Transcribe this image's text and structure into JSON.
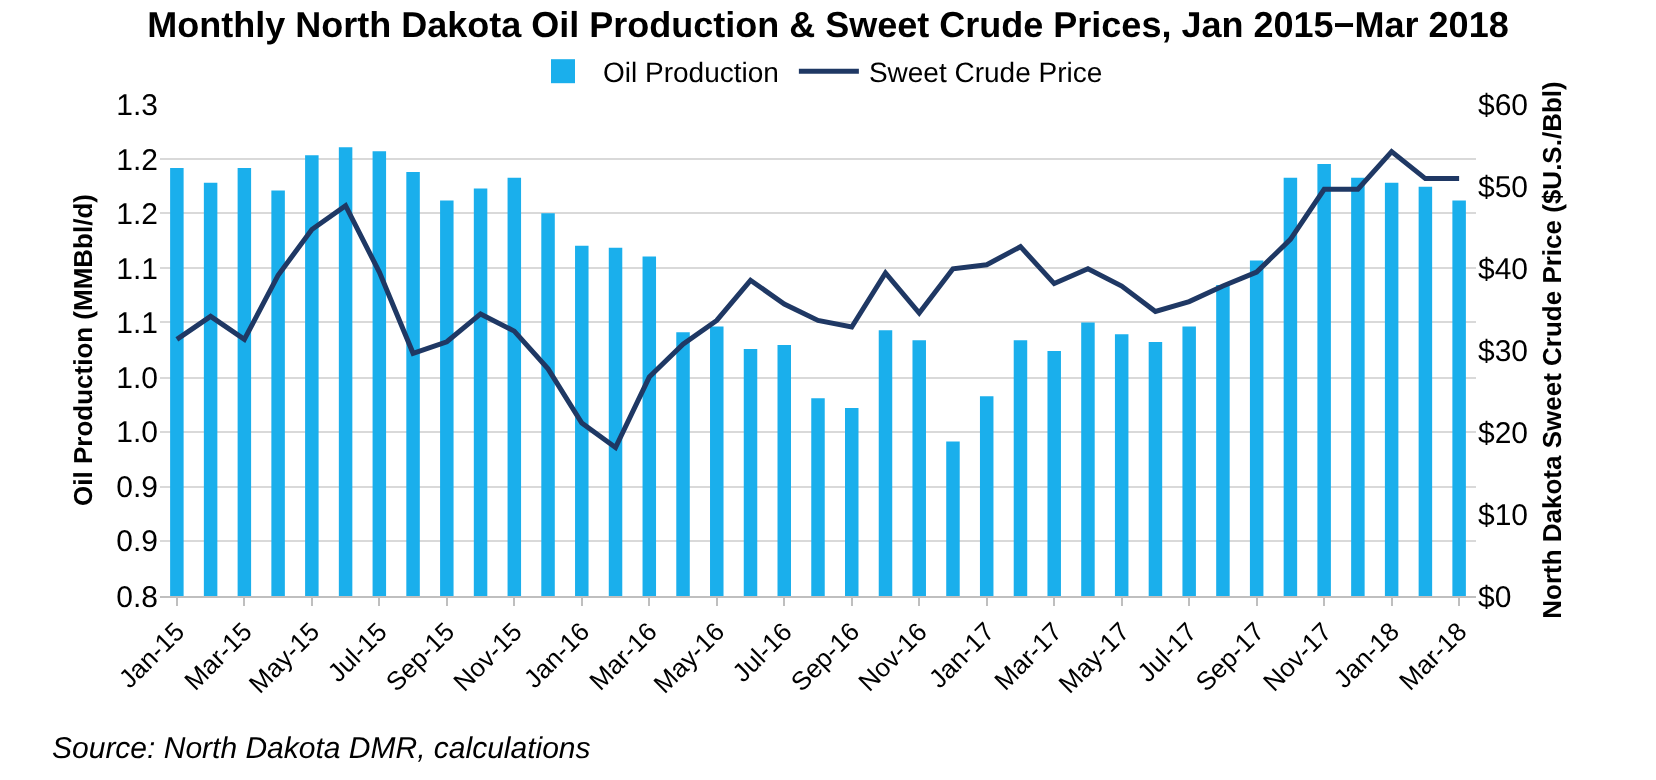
{
  "chart_data": {
    "type": "bar",
    "title": "Monthly North Dakota Oil Production & Sweet Crude Prices, Jan 2015−Mar 2018",
    "ylabel": "Oil Production (MMBbl/d)",
    "y2label": "North Dakota Sweet Crude Price ($U.S./Bbl)",
    "annotations": [
      "Source: North Dakota DMR, calculations"
    ],
    "categories": [
      "Jan-15",
      null,
      "Mar-15",
      null,
      "May-15",
      null,
      "Jul-15",
      null,
      "Sep-15",
      null,
      "Nov-15",
      null,
      "Jan-16",
      null,
      "Mar-16",
      null,
      "May-16",
      null,
      "Jul-16",
      null,
      "Sep-16",
      null,
      "Nov-16",
      null,
      "Jan-17",
      null,
      "Mar-17",
      null,
      "May-17",
      null,
      "Jul-17",
      null,
      "Sep-17",
      null,
      "Nov-17",
      null,
      "Jan-18",
      null,
      "Mar-18"
    ],
    "series": [
      {
        "name": "Oil Production",
        "color": "#1aafec",
        "values": [
          1.235,
          1.22,
          1.235,
          1.212,
          1.248,
          1.256,
          1.252,
          1.231,
          1.202,
          1.214,
          1.225,
          1.189,
          1.156,
          1.154,
          1.145,
          1.068,
          1.074,
          1.051,
          1.055,
          1.001,
          0.991,
          1.07,
          1.06,
          0.957,
          1.003,
          1.06,
          1.049,
          1.078,
          1.066,
          1.058,
          1.074,
          1.116,
          1.141,
          1.225,
          1.239,
          1.225,
          1.22,
          1.216,
          1.202
        ]
      },
      {
        "name": "Sweet Crude Price",
        "type": "line",
        "axis": "y2",
        "color": "#1f3864",
        "values": [
          31.3,
          34.1,
          31.3,
          39.1,
          44.7,
          47.6,
          39.5,
          29.6,
          31.0,
          34.4,
          32.3,
          27.7,
          21.1,
          18.1,
          26.7,
          30.7,
          33.6,
          38.5,
          35.6,
          33.6,
          32.8,
          39.4,
          34.5,
          39.9,
          40.4,
          42.6,
          38.1,
          39.9,
          37.8,
          34.7,
          35.9,
          37.8,
          39.5,
          43.5,
          49.6,
          49.6,
          54.2,
          50.9,
          50.9
        ]
      }
    ],
    "ylim": [
      0.8,
      1.3
    ],
    "yticks": [
      0.8,
      {
        "value": 0.856,
        "label": "0.9"
      },
      {
        "value": 0.911,
        "label": "0.9"
      },
      {
        "value": 0.967,
        "label": "1.0"
      },
      {
        "value": 1.022,
        "label": "1.0"
      },
      {
        "value": 1.078,
        "label": "1.1"
      },
      {
        "value": 1.133,
        "label": "1.1"
      },
      {
        "value": 1.189,
        "label": "1.2"
      },
      {
        "value": 1.244,
        "label": "1.2"
      },
      1.3
    ],
    "y2lim": [
      0,
      60
    ],
    "y2ticks": [
      {
        "value": 0,
        "label": "$0"
      },
      {
        "value": 10,
        "label": "$10"
      },
      {
        "value": 20,
        "label": "$20"
      },
      {
        "value": 30,
        "label": "$30"
      },
      {
        "value": 40,
        "label": "$40"
      },
      {
        "value": 50,
        "label": "$50"
      },
      {
        "value": 60,
        "label": "$60"
      }
    ],
    "grid": "y",
    "legend": "top",
    "marker": "none",
    "line_style": "solid"
  }
}
